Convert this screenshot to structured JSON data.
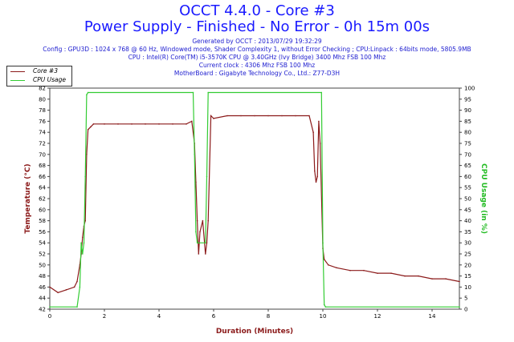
{
  "header": {
    "title": "OCCT 4.4.0 - Core #3",
    "subtitle": "Power Supply - Finished - No Error - 0h 15m 00s"
  },
  "info_lines": [
    "Generated by OCCT : 2013/07/29 19:32:29",
    "Config : GPU3D : 1024 x 768 @ 60 Hz, Windowed mode, Shader Complexity 1, without Error Checking ; CPU:Linpack : 64bits mode, 5805.9MB",
    "CPU : Intel(R) Core(TM) i5-3570K CPU @ 3.40GHz (Ivy Bridge) 3400 Mhz FSB 100 Mhz",
    "Current clock : 4306 Mhz FSB 100 Mhz",
    "MotherBoard : Gigabyte Technology Co., Ltd.: Z77-D3H"
  ],
  "chart_data": {
    "type": "line",
    "xlabel": "Duration (Minutes)",
    "ylabel_left": "Temperature (°C)",
    "ylabel_right": "CPU Usage (in %)",
    "xlim": [
      0,
      15
    ],
    "ylim_left": [
      42,
      82
    ],
    "ylim_right": [
      0,
      100
    ],
    "x_ticks": [
      "0",
      "2",
      "4",
      "6",
      "8",
      "10",
      "12",
      "14"
    ],
    "y_ticks_left": [
      "42",
      "44",
      "46",
      "48",
      "50",
      "52",
      "54",
      "56",
      "58",
      "60",
      "62",
      "64",
      "66",
      "68",
      "70",
      "72",
      "74",
      "76",
      "78",
      "80",
      "82"
    ],
    "y_ticks_right": [
      "0",
      "5",
      "10",
      "15",
      "20",
      "25",
      "30",
      "35",
      "40",
      "45",
      "50",
      "55",
      "60",
      "65",
      "70",
      "75",
      "80",
      "85",
      "90",
      "95",
      "100"
    ],
    "legend_position": "top-left",
    "grid": false,
    "series": [
      {
        "name": "Core #3",
        "axis": "left",
        "color": "#8b1a1a",
        "x": [
          0,
          0.3,
          0.6,
          0.9,
          1.0,
          1.1,
          1.15,
          1.2,
          1.25,
          1.3,
          1.35,
          1.4,
          1.5,
          1.6,
          2.0,
          2.5,
          3.0,
          3.5,
          4.0,
          4.5,
          5.0,
          5.2,
          5.3,
          5.35,
          5.4,
          5.45,
          5.5,
          5.6,
          5.7,
          5.75,
          5.8,
          5.9,
          6.0,
          6.5,
          7.0,
          7.5,
          8.0,
          8.5,
          9.0,
          9.5,
          9.65,
          9.7,
          9.75,
          9.8,
          9.85,
          9.9,
          10.0,
          10.05,
          10.2,
          10.5,
          11.0,
          11.5,
          12.0,
          12.5,
          13.0,
          13.5,
          14.0,
          14.5,
          15.0
        ],
        "values": [
          46,
          45,
          45.5,
          46,
          47,
          50,
          52,
          55,
          57,
          58,
          70,
          74.5,
          75,
          75.5,
          75.5,
          75.5,
          75.5,
          75.5,
          75.5,
          75.5,
          75.5,
          76,
          72,
          65,
          58,
          52,
          56,
          58,
          52,
          54,
          58,
          77,
          76.5,
          77,
          77,
          77,
          77,
          77,
          77,
          77,
          74,
          67,
          65,
          66,
          76,
          72,
          53,
          51,
          50,
          49.5,
          49,
          49,
          48.5,
          48.5,
          48,
          48,
          47.5,
          47.5,
          47
        ]
      },
      {
        "name": "CPU Usage",
        "axis": "right",
        "color": "#33cc33",
        "x": [
          0,
          1.0,
          1.1,
          1.15,
          1.2,
          1.25,
          1.3,
          1.35,
          1.4,
          5.25,
          5.3,
          5.35,
          5.4,
          5.7,
          5.75,
          5.8,
          9.95,
          10.0,
          10.05,
          10.1,
          15.0
        ],
        "values": [
          1,
          1,
          10,
          30,
          25,
          30,
          60,
          97,
          98,
          98,
          70,
          35,
          30,
          30,
          60,
          98,
          98,
          30,
          2,
          1,
          1
        ]
      }
    ]
  }
}
